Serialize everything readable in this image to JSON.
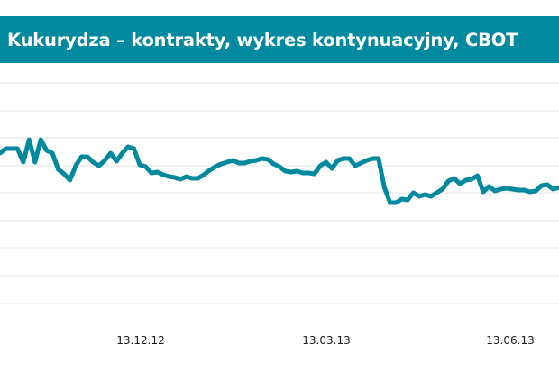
{
  "colors": {
    "title_bg": "#00899f",
    "title_text": "#ffffff",
    "line": "#00889f",
    "grid": "#e6e6e6"
  },
  "header": {
    "title": "Kukurydza – kontrakty, wykres kontynuacyjny, CBOT"
  },
  "chart_data": {
    "type": "line",
    "title": "Kukurydza – kontrakty, wykres kontynuacyjny, CBOT",
    "xlabel": "",
    "ylabel": "",
    "x_tick_labels": [
      "13.12.12",
      "13.03.13",
      "13.06.13"
    ],
    "grid": "horizontal",
    "series": [
      {
        "values": [
          4,
          4.5,
          4.5,
          4.5,
          3,
          5.5,
          3,
          5.5,
          4.3,
          4,
          2.2,
          1.7,
          1,
          2.6,
          3.6,
          3.6,
          3,
          2.6,
          3.2,
          4,
          3.1,
          4,
          4.7,
          4.5,
          2.7,
          2.5,
          1.8,
          1.9,
          1.6,
          1.4,
          1.3,
          1.1,
          1.4,
          1.2,
          1.2,
          1.6,
          2.1,
          2.5,
          2.8,
          3,
          3.2,
          2.9,
          2.9,
          3.1,
          3.2,
          3.4,
          3.3,
          2.8,
          2.5,
          2,
          1.9,
          2,
          1.8,
          1.8,
          1.7,
          2.6,
          3,
          2.3,
          3.2,
          3.4,
          3.4,
          2.6,
          2.9,
          3.2,
          3.4,
          3.4,
          0.2,
          -1.5,
          -1.5,
          -1.1,
          -1.2,
          -0.4,
          -0.8,
          -0.6,
          -0.8,
          -0.4,
          0,
          0.9,
          1.2,
          0.6,
          1,
          1.1,
          1.5,
          -0.3,
          0.3,
          -0.2,
          0,
          0.1,
          0,
          -0.1,
          -0.1,
          -0.3,
          -0.2,
          0.4,
          0.5,
          0,
          0.2
        ]
      }
    ]
  }
}
